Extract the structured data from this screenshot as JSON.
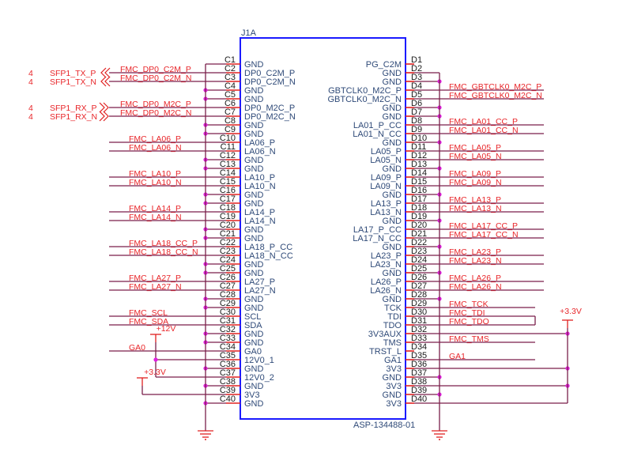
{
  "component": {
    "ref": "J1A",
    "part": "ASP-134488-01"
  },
  "colors": {
    "wire": "#7a1f4a",
    "stub": "#e02020",
    "body": "#1a1aff",
    "junction": "#e020e0",
    "net_label": "#e8262a",
    "pin_name": "#2f4a78"
  },
  "left_pins": [
    {
      "num": "C1",
      "name": "GND"
    },
    {
      "num": "C2",
      "name": "DP0_C2M_P"
    },
    {
      "num": "C3",
      "name": "DP0_C2M_N"
    },
    {
      "num": "C4",
      "name": "GND"
    },
    {
      "num": "C5",
      "name": "GND"
    },
    {
      "num": "C6",
      "name": "DP0_M2C_P"
    },
    {
      "num": "C7",
      "name": "DP0_M2C_N"
    },
    {
      "num": "C8",
      "name": "GND"
    },
    {
      "num": "C9",
      "name": "GND"
    },
    {
      "num": "C10",
      "name": "LA06_P"
    },
    {
      "num": "C11",
      "name": "LA06_N"
    },
    {
      "num": "C12",
      "name": "GND"
    },
    {
      "num": "C13",
      "name": "GND"
    },
    {
      "num": "C14",
      "name": "LA10_P"
    },
    {
      "num": "C15",
      "name": "LA10_N"
    },
    {
      "num": "C16",
      "name": "GND"
    },
    {
      "num": "C17",
      "name": "GND"
    },
    {
      "num": "C18",
      "name": "LA14_P"
    },
    {
      "num": "C19",
      "name": "LA14_N"
    },
    {
      "num": "C20",
      "name": "GND"
    },
    {
      "num": "C21",
      "name": "GND"
    },
    {
      "num": "C22",
      "name": "LA18_P_CC"
    },
    {
      "num": "C23",
      "name": "LA18_N_CC"
    },
    {
      "num": "C24",
      "name": "GND"
    },
    {
      "num": "C25",
      "name": "GND"
    },
    {
      "num": "C26",
      "name": "LA27_P"
    },
    {
      "num": "C27",
      "name": "LA27_N"
    },
    {
      "num": "C28",
      "name": "GND"
    },
    {
      "num": "C29",
      "name": "GND"
    },
    {
      "num": "C30",
      "name": "SCL"
    },
    {
      "num": "C31",
      "name": "SDA"
    },
    {
      "num": "C32",
      "name": "GND"
    },
    {
      "num": "C33",
      "name": "GND"
    },
    {
      "num": "C34",
      "name": "GA0"
    },
    {
      "num": "C35",
      "name": "12V0_1"
    },
    {
      "num": "C36",
      "name": "GND"
    },
    {
      "num": "C37",
      "name": "12V0_2"
    },
    {
      "num": "C38",
      "name": "GND"
    },
    {
      "num": "C39",
      "name": "3V3"
    },
    {
      "num": "C40",
      "name": "GND"
    }
  ],
  "right_pins": [
    {
      "num": "D1",
      "name": "PG_C2M"
    },
    {
      "num": "D2",
      "name": "GND"
    },
    {
      "num": "D3",
      "name": "GND"
    },
    {
      "num": "D4",
      "name": "GBTCLK0_M2C_P"
    },
    {
      "num": "D5",
      "name": "GBTCLK0_M2C_N"
    },
    {
      "num": "D6",
      "name": "GND"
    },
    {
      "num": "D7",
      "name": "GND"
    },
    {
      "num": "D8",
      "name": "LA01_P_CC"
    },
    {
      "num": "D9",
      "name": "LA01_N_CC"
    },
    {
      "num": "D10",
      "name": "GND"
    },
    {
      "num": "D11",
      "name": "LA05_P"
    },
    {
      "num": "D12",
      "name": "LA05_N"
    },
    {
      "num": "D13",
      "name": "GND"
    },
    {
      "num": "D14",
      "name": "LA09_P"
    },
    {
      "num": "D15",
      "name": "LA09_N"
    },
    {
      "num": "D16",
      "name": "GND"
    },
    {
      "num": "D17",
      "name": "LA13_P"
    },
    {
      "num": "D18",
      "name": "LA13_N"
    },
    {
      "num": "D19",
      "name": "GND"
    },
    {
      "num": "D20",
      "name": "LA17_P_CC"
    },
    {
      "num": "D21",
      "name": "LA17_N_CC"
    },
    {
      "num": "D22",
      "name": "GND"
    },
    {
      "num": "D23",
      "name": "LA23_P"
    },
    {
      "num": "D24",
      "name": "LA23_N"
    },
    {
      "num": "D25",
      "name": "GND"
    },
    {
      "num": "D26",
      "name": "LA26_P"
    },
    {
      "num": "D27",
      "name": "LA26_N"
    },
    {
      "num": "D28",
      "name": "GND"
    },
    {
      "num": "D29",
      "name": "TCK"
    },
    {
      "num": "D30",
      "name": "TDI"
    },
    {
      "num": "D31",
      "name": "TDO"
    },
    {
      "num": "D32",
      "name": "3V3AUX"
    },
    {
      "num": "D33",
      "name": "TMS"
    },
    {
      "num": "D34",
      "name": "TRST_L"
    },
    {
      "num": "D35",
      "name": "GA1"
    },
    {
      "num": "D36",
      "name": "3V3"
    },
    {
      "num": "D37",
      "name": "GND"
    },
    {
      "num": "D38",
      "name": "3V3"
    },
    {
      "num": "D39",
      "name": "GND"
    },
    {
      "num": "D40",
      "name": "3V3"
    }
  ],
  "left_nets": [
    {
      "pin": "C2",
      "label": "FMC_DP0_C2M_P",
      "port": "SFP1_TX_P",
      "sheet": "4",
      "dir": "out"
    },
    {
      "pin": "C3",
      "label": "FMC_DP0_C2M_N",
      "port": "SFP1_TX_N",
      "sheet": "4",
      "dir": "out"
    },
    {
      "pin": "C6",
      "label": "FMC_DP0_M2C_P",
      "port": "SFP1_RX_P",
      "sheet": "4",
      "dir": "in"
    },
    {
      "pin": "C7",
      "label": "FMC_DP0_M2C_N",
      "port": "SFP1_RX_N",
      "sheet": "4",
      "dir": "in"
    },
    {
      "pin": "C10",
      "label": "FMC_LA06_P"
    },
    {
      "pin": "C11",
      "label": "FMC_LA06_N"
    },
    {
      "pin": "C14",
      "label": "FMC_LA10_P"
    },
    {
      "pin": "C15",
      "label": "FMC_LA10_N"
    },
    {
      "pin": "C18",
      "label": "FMC_LA14_P"
    },
    {
      "pin": "C19",
      "label": "FMC_LA14_N"
    },
    {
      "pin": "C22",
      "label": "FMC_LA18_CC_P"
    },
    {
      "pin": "C23",
      "label": "FMC_LA18_CC_N"
    },
    {
      "pin": "C26",
      "label": "FMC_LA27_P"
    },
    {
      "pin": "C27",
      "label": "FMC_LA27_N"
    },
    {
      "pin": "C30",
      "label": "FMC_SCL"
    },
    {
      "pin": "C31",
      "label": "FMC_SDA"
    },
    {
      "pin": "C34",
      "label": "GA0"
    }
  ],
  "right_nets": [
    {
      "pin": "D4",
      "label": "FMC_GBTCLK0_M2C_P"
    },
    {
      "pin": "D5",
      "label": "FMC_GBTCLK0_M2C_N"
    },
    {
      "pin": "D8",
      "label": "FMC_LA01_CC_P"
    },
    {
      "pin": "D9",
      "label": "FMC_LA01_CC_N"
    },
    {
      "pin": "D11",
      "label": "FMC_LA05_P"
    },
    {
      "pin": "D12",
      "label": "FMC_LA05_N"
    },
    {
      "pin": "D14",
      "label": "FMC_LA09_P"
    },
    {
      "pin": "D15",
      "label": "FMC_LA09_N"
    },
    {
      "pin": "D17",
      "label": "FMC_LA13_P"
    },
    {
      "pin": "D18",
      "label": "FMC_LA13_N"
    },
    {
      "pin": "D20",
      "label": "FMC_LA17_CC_P"
    },
    {
      "pin": "D21",
      "label": "FMC_LA17_CC_N"
    },
    {
      "pin": "D23",
      "label": "FMC_LA23_P"
    },
    {
      "pin": "D24",
      "label": "FMC_LA23_N"
    },
    {
      "pin": "D26",
      "label": "FMC_LA26_P"
    },
    {
      "pin": "D27",
      "label": "FMC_LA26_N"
    },
    {
      "pin": "D29",
      "label": "FMC_TCK",
      "short": true
    },
    {
      "pin": "D30",
      "label": "FMC_TDI",
      "short": true
    },
    {
      "pin": "D31",
      "label": "FMC_TDO",
      "short": true
    },
    {
      "pin": "D33",
      "label": "FMC_TMS",
      "short": true
    },
    {
      "pin": "D35",
      "label": "GA1",
      "short": true
    }
  ],
  "power": {
    "p12v": "+12V",
    "p3v3_left": "+3.3V",
    "p3v3_right": "+3.3V"
  }
}
